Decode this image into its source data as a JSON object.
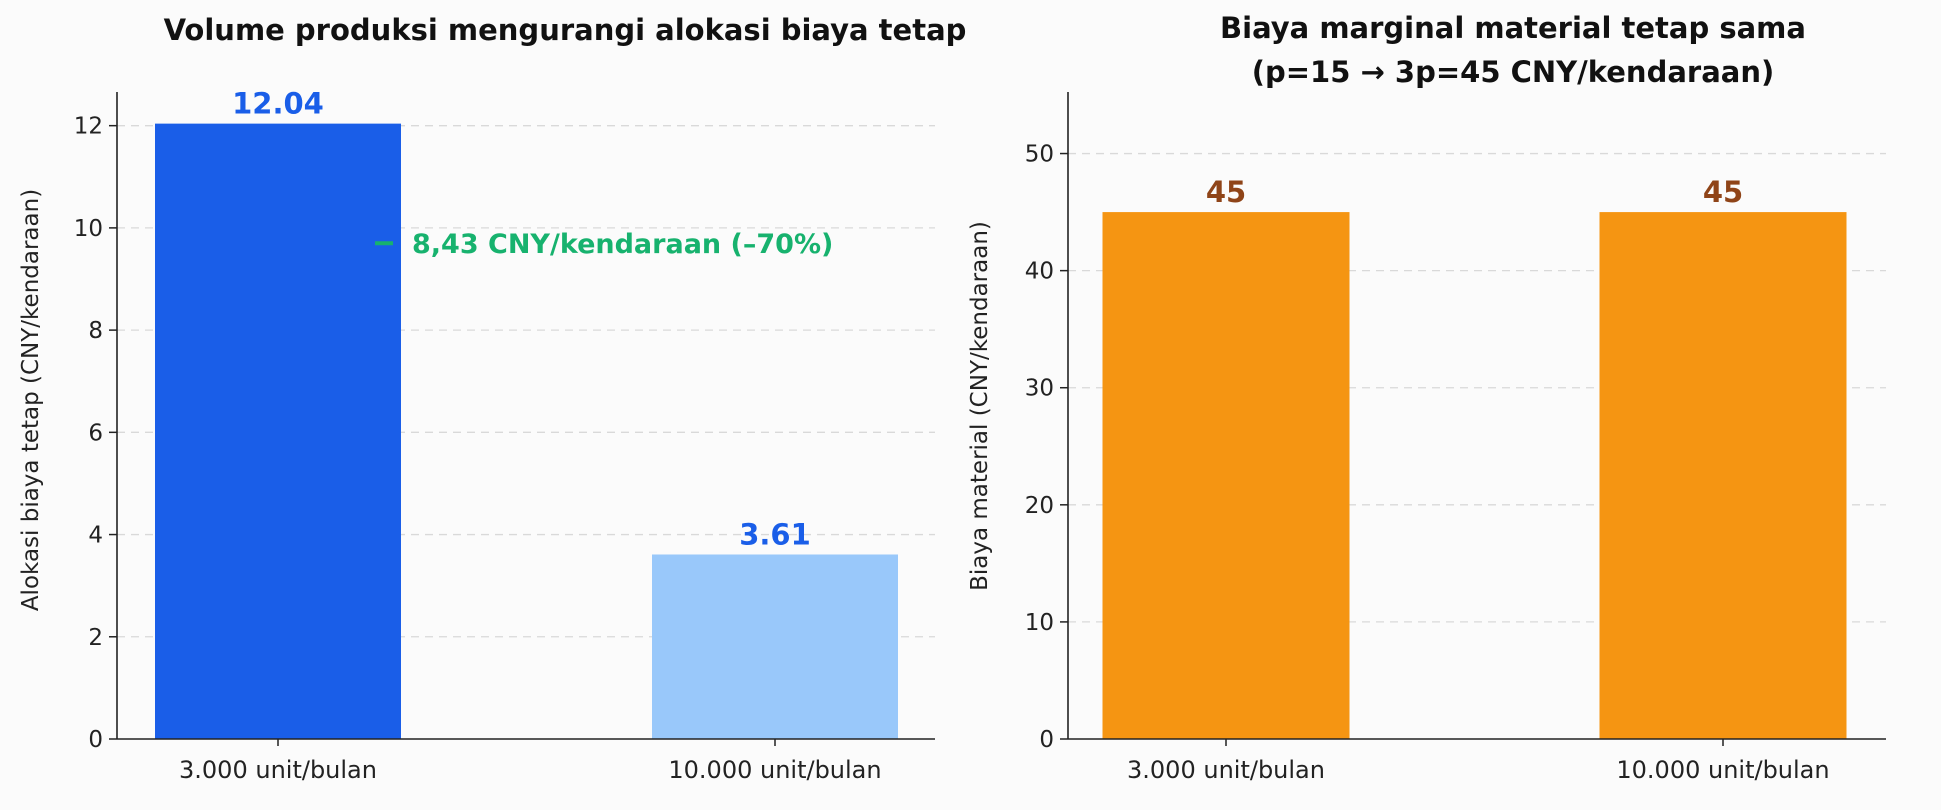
{
  "chart_data": [
    {
      "type": "bar",
      "title": "Volume produksi mengurangi alokasi biaya tetap",
      "ylabel": "Alokasi biaya tetap (CNY/kendaraan)",
      "xlabel": "",
      "categories": [
        "3.000 unit/bulan",
        "10.000 unit/bulan"
      ],
      "values": [
        12.04,
        3.61
      ],
      "value_labels": [
        "12.04",
        "3.61"
      ],
      "bar_colors": [
        "#1a5ee8",
        "#99c8fa"
      ],
      "value_label_color": "#1a5ee8",
      "ylim": [
        0,
        12.6
      ],
      "yticks": [
        0,
        2,
        4,
        6,
        8,
        10,
        12
      ],
      "grid": "horizontal-dashed",
      "annotation": {
        "text": "– 8,43 CNY/kendaraan (–70%)",
        "color": "#17b26e",
        "y": 9.7
      }
    },
    {
      "type": "bar",
      "title": "Biaya marginal material tetap sama",
      "subtitle": "(p=15 → 3p=45 CNY/kendaraan)",
      "ylabel": "Biaya material (CNY/kendaraan)",
      "xlabel": "",
      "categories": [
        "3.000 unit/bulan",
        "10.000 unit/bulan"
      ],
      "values": [
        45,
        45
      ],
      "value_labels": [
        "45",
        "45"
      ],
      "bar_colors": [
        "#f59512",
        "#f59512"
      ],
      "value_label_color": "#8f4418",
      "ylim": [
        0,
        55
      ],
      "yticks": [
        0,
        10,
        20,
        30,
        40,
        50
      ],
      "grid": "horizontal-dashed"
    }
  ]
}
